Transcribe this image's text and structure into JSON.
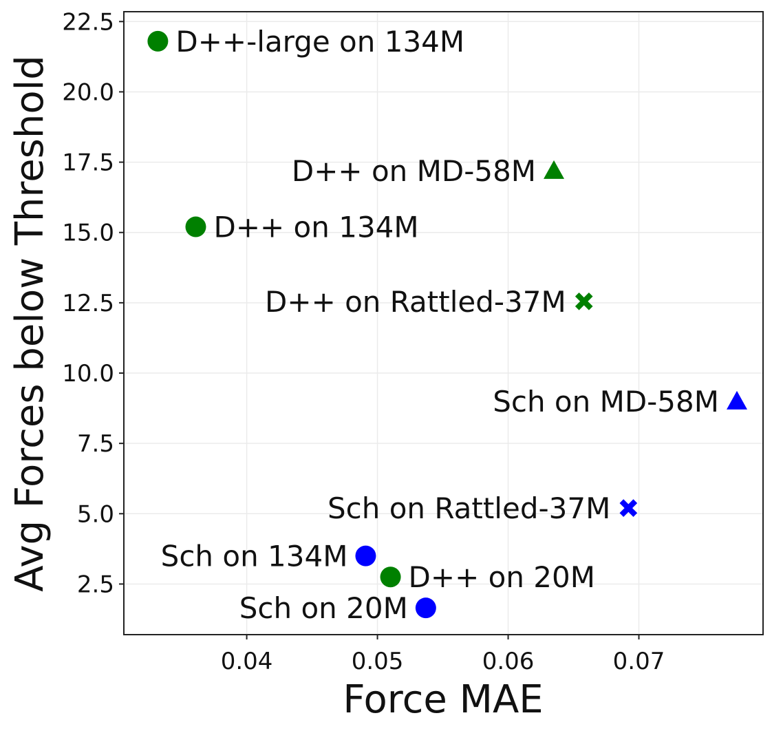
{
  "chart_data": {
    "type": "scatter",
    "title": "",
    "xlabel": "Force MAE",
    "ylabel": "Avg Forces below Threshold",
    "xlim": [
      0.0306,
      0.0795
    ],
    "ylim": [
      0.7,
      22.85
    ],
    "xticks": [
      0.04,
      0.05,
      0.06,
      0.07
    ],
    "xtick_labels": [
      "0.04",
      "0.05",
      "0.06",
      "0.07"
    ],
    "yticks": [
      2.5,
      5.0,
      7.5,
      10.0,
      12.5,
      15.0,
      17.5,
      20.0,
      22.5
    ],
    "ytick_labels": [
      "2.5",
      "5.0",
      "7.5",
      "10.0",
      "12.5",
      "15.0",
      "17.5",
      "20.0",
      "22.5"
    ],
    "grid": true,
    "colors": {
      "green": "#008000",
      "blue": "#0000ff"
    },
    "points": [
      {
        "label": "D++-large on 134M",
        "x": 0.0332,
        "y": 21.8,
        "marker": "circle",
        "color": "#008000",
        "label_side": "right"
      },
      {
        "label": "D++ on MD-58M",
        "x": 0.0635,
        "y": 17.2,
        "marker": "triangle",
        "color": "#008000",
        "label_side": "left"
      },
      {
        "label": "D++ on 134M",
        "x": 0.0361,
        "y": 15.2,
        "marker": "circle",
        "color": "#008000",
        "label_side": "right"
      },
      {
        "label": "D++ on Rattled-37M",
        "x": 0.0658,
        "y": 12.55,
        "marker": "x",
        "color": "#008000",
        "label_side": "left"
      },
      {
        "label": "Sch on MD-58M",
        "x": 0.0775,
        "y": 9.0,
        "marker": "triangle",
        "color": "#0000ff",
        "label_side": "left"
      },
      {
        "label": "Sch on Rattled-37M",
        "x": 0.0692,
        "y": 5.2,
        "marker": "x",
        "color": "#0000ff",
        "label_side": "left"
      },
      {
        "label": "Sch on 134M",
        "x": 0.0491,
        "y": 3.5,
        "marker": "circle",
        "color": "#0000ff",
        "label_side": "left"
      },
      {
        "label": "D++ on 20M",
        "x": 0.051,
        "y": 2.75,
        "marker": "circle",
        "color": "#008000",
        "label_side": "right"
      },
      {
        "label": "Sch on 20M",
        "x": 0.0537,
        "y": 1.65,
        "marker": "circle",
        "color": "#0000ff",
        "label_side": "left"
      }
    ]
  }
}
